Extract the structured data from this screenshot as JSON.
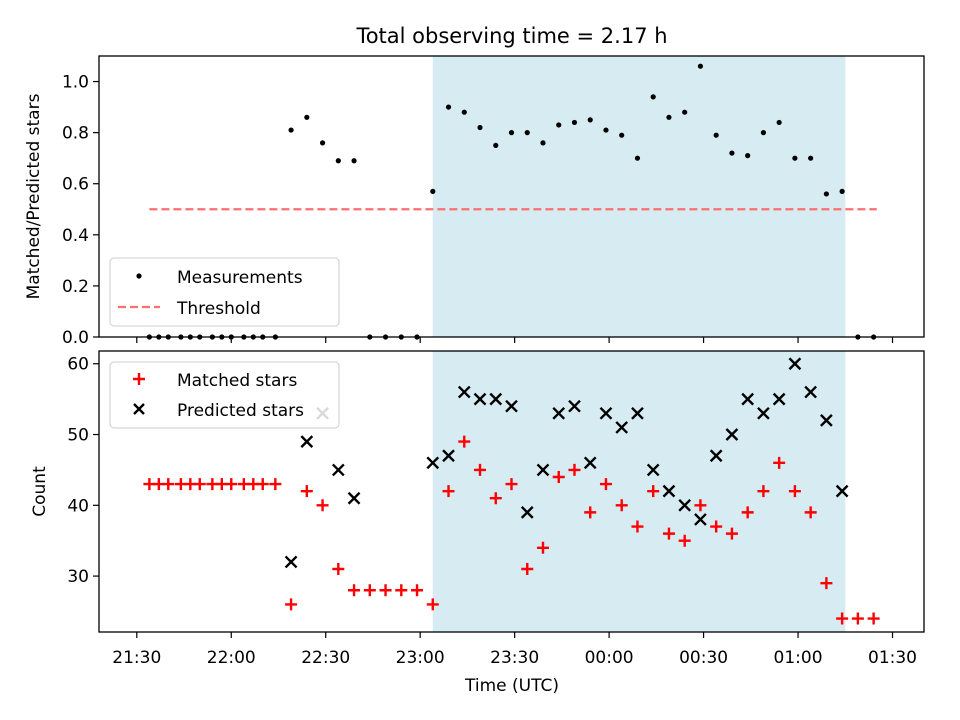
{
  "title": "Total observing time = 2.17 h",
  "colors": {
    "shade": "#add8e6",
    "threshold": "#ff6f6f",
    "measurement": "#000000",
    "matched": "#ff0000",
    "predicted": "#000000"
  },
  "chart_data": [
    {
      "type": "scatter",
      "ylabel": "Matched/Predicted stars",
      "ylim": [
        0,
        1.1
      ],
      "yticks": [
        "0.0",
        "0.2",
        "0.4",
        "0.6",
        "0.8",
        "1.0"
      ],
      "legend": {
        "placement": "lower-left",
        "entries": [
          "Measurements",
          "Threshold"
        ]
      },
      "shaded_x_range": [
        "23:04",
        "01:15"
      ],
      "threshold": {
        "name": "Threshold",
        "y": 0.5,
        "x_range": [
          "21:34",
          "01:25"
        ]
      },
      "series": [
        {
          "name": "Measurements",
          "x": [
            "21:34",
            "21:37",
            "21:40",
            "21:44",
            "21:47",
            "21:50",
            "21:54",
            "21:57",
            "22:00",
            "22:04",
            "22:07",
            "22:10",
            "22:14",
            "22:19",
            "22:24",
            "22:29",
            "22:34",
            "22:39",
            "22:44",
            "22:49",
            "22:54",
            "22:59",
            "23:04",
            "23:09",
            "23:14",
            "23:19",
            "23:24",
            "23:29",
            "23:34",
            "23:39",
            "23:44",
            "23:49",
            "23:54",
            "23:59",
            "00:04",
            "00:09",
            "00:14",
            "00:19",
            "00:24",
            "00:29",
            "00:34",
            "00:39",
            "00:44",
            "00:49",
            "00:54",
            "00:59",
            "01:04",
            "01:09",
            "01:14",
            "01:19",
            "01:24"
          ],
          "y": [
            0,
            0,
            0,
            0,
            0,
            0,
            0,
            0,
            0,
            0,
            0,
            0,
            0,
            0.81,
            0.86,
            0.76,
            0.69,
            0.69,
            0,
            0,
            0,
            0,
            0.57,
            0.9,
            0.88,
            0.82,
            0.75,
            0.8,
            0.8,
            0.76,
            0.83,
            0.84,
            0.85,
            0.81,
            0.79,
            0.7,
            0.94,
            0.86,
            0.88,
            1.06,
            0.79,
            0.72,
            0.71,
            0.8,
            0.84,
            0.7,
            0.7,
            0.56,
            0.57,
            0,
            0
          ]
        }
      ]
    },
    {
      "type": "scatter",
      "xlabel": "Time (UTC)",
      "ylabel": "Count",
      "ylim": [
        22.1,
        61.8
      ],
      "yticks": [
        "30",
        "40",
        "50",
        "60"
      ],
      "xticks": [
        "21:30",
        "22:00",
        "22:30",
        "23:00",
        "23:30",
        "00:00",
        "00:30",
        "01:00",
        "01:30"
      ],
      "legend": {
        "placement": "upper-left",
        "entries": [
          "Matched stars",
          "Predicted stars"
        ]
      },
      "shaded_x_range": [
        "23:04",
        "01:15"
      ],
      "series": [
        {
          "name": "Matched stars",
          "x": [
            "21:34",
            "21:37",
            "21:40",
            "21:44",
            "21:47",
            "21:50",
            "21:54",
            "21:57",
            "22:00",
            "22:04",
            "22:07",
            "22:10",
            "22:14",
            "22:19",
            "22:24",
            "22:29",
            "22:34",
            "22:39",
            "22:44",
            "22:49",
            "22:54",
            "22:59",
            "23:04",
            "23:09",
            "23:14",
            "23:19",
            "23:24",
            "23:29",
            "23:34",
            "23:39",
            "23:44",
            "23:49",
            "23:54",
            "23:59",
            "00:04",
            "00:09",
            "00:14",
            "00:19",
            "00:24",
            "00:29",
            "00:34",
            "00:39",
            "00:44",
            "00:49",
            "00:54",
            "00:59",
            "01:04",
            "01:09",
            "01:14",
            "01:19",
            "01:24"
          ],
          "y": [
            43,
            43,
            43,
            43,
            43,
            43,
            43,
            43,
            43,
            43,
            43,
            43,
            43,
            26,
            42,
            40,
            31,
            28,
            28,
            28,
            28,
            28,
            26,
            42,
            49,
            45,
            41,
            43,
            31,
            34,
            44,
            45,
            39,
            43,
            40,
            37,
            42,
            36,
            35,
            40,
            37,
            36,
            39,
            42,
            46,
            42,
            39,
            29,
            24,
            24,
            24
          ]
        },
        {
          "name": "Predicted stars",
          "x": [
            "22:19",
            "22:24",
            "22:29",
            "22:34",
            "22:39",
            "23:04",
            "23:09",
            "23:14",
            "23:19",
            "23:24",
            "23:29",
            "23:34",
            "23:39",
            "23:44",
            "23:49",
            "23:54",
            "23:59",
            "00:04",
            "00:09",
            "00:14",
            "00:19",
            "00:24",
            "00:29",
            "00:34",
            "00:39",
            "00:44",
            "00:49",
            "00:54",
            "00:59",
            "01:04",
            "01:09",
            "01:14"
          ],
          "y": [
            32,
            49,
            53,
            45,
            41,
            46,
            47,
            56,
            55,
            55,
            54,
            39,
            45,
            53,
            54,
            46,
            53,
            51,
            53,
            45,
            42,
            40,
            38,
            47,
            50,
            55,
            53,
            55,
            60,
            56,
            52,
            42
          ]
        }
      ]
    }
  ]
}
